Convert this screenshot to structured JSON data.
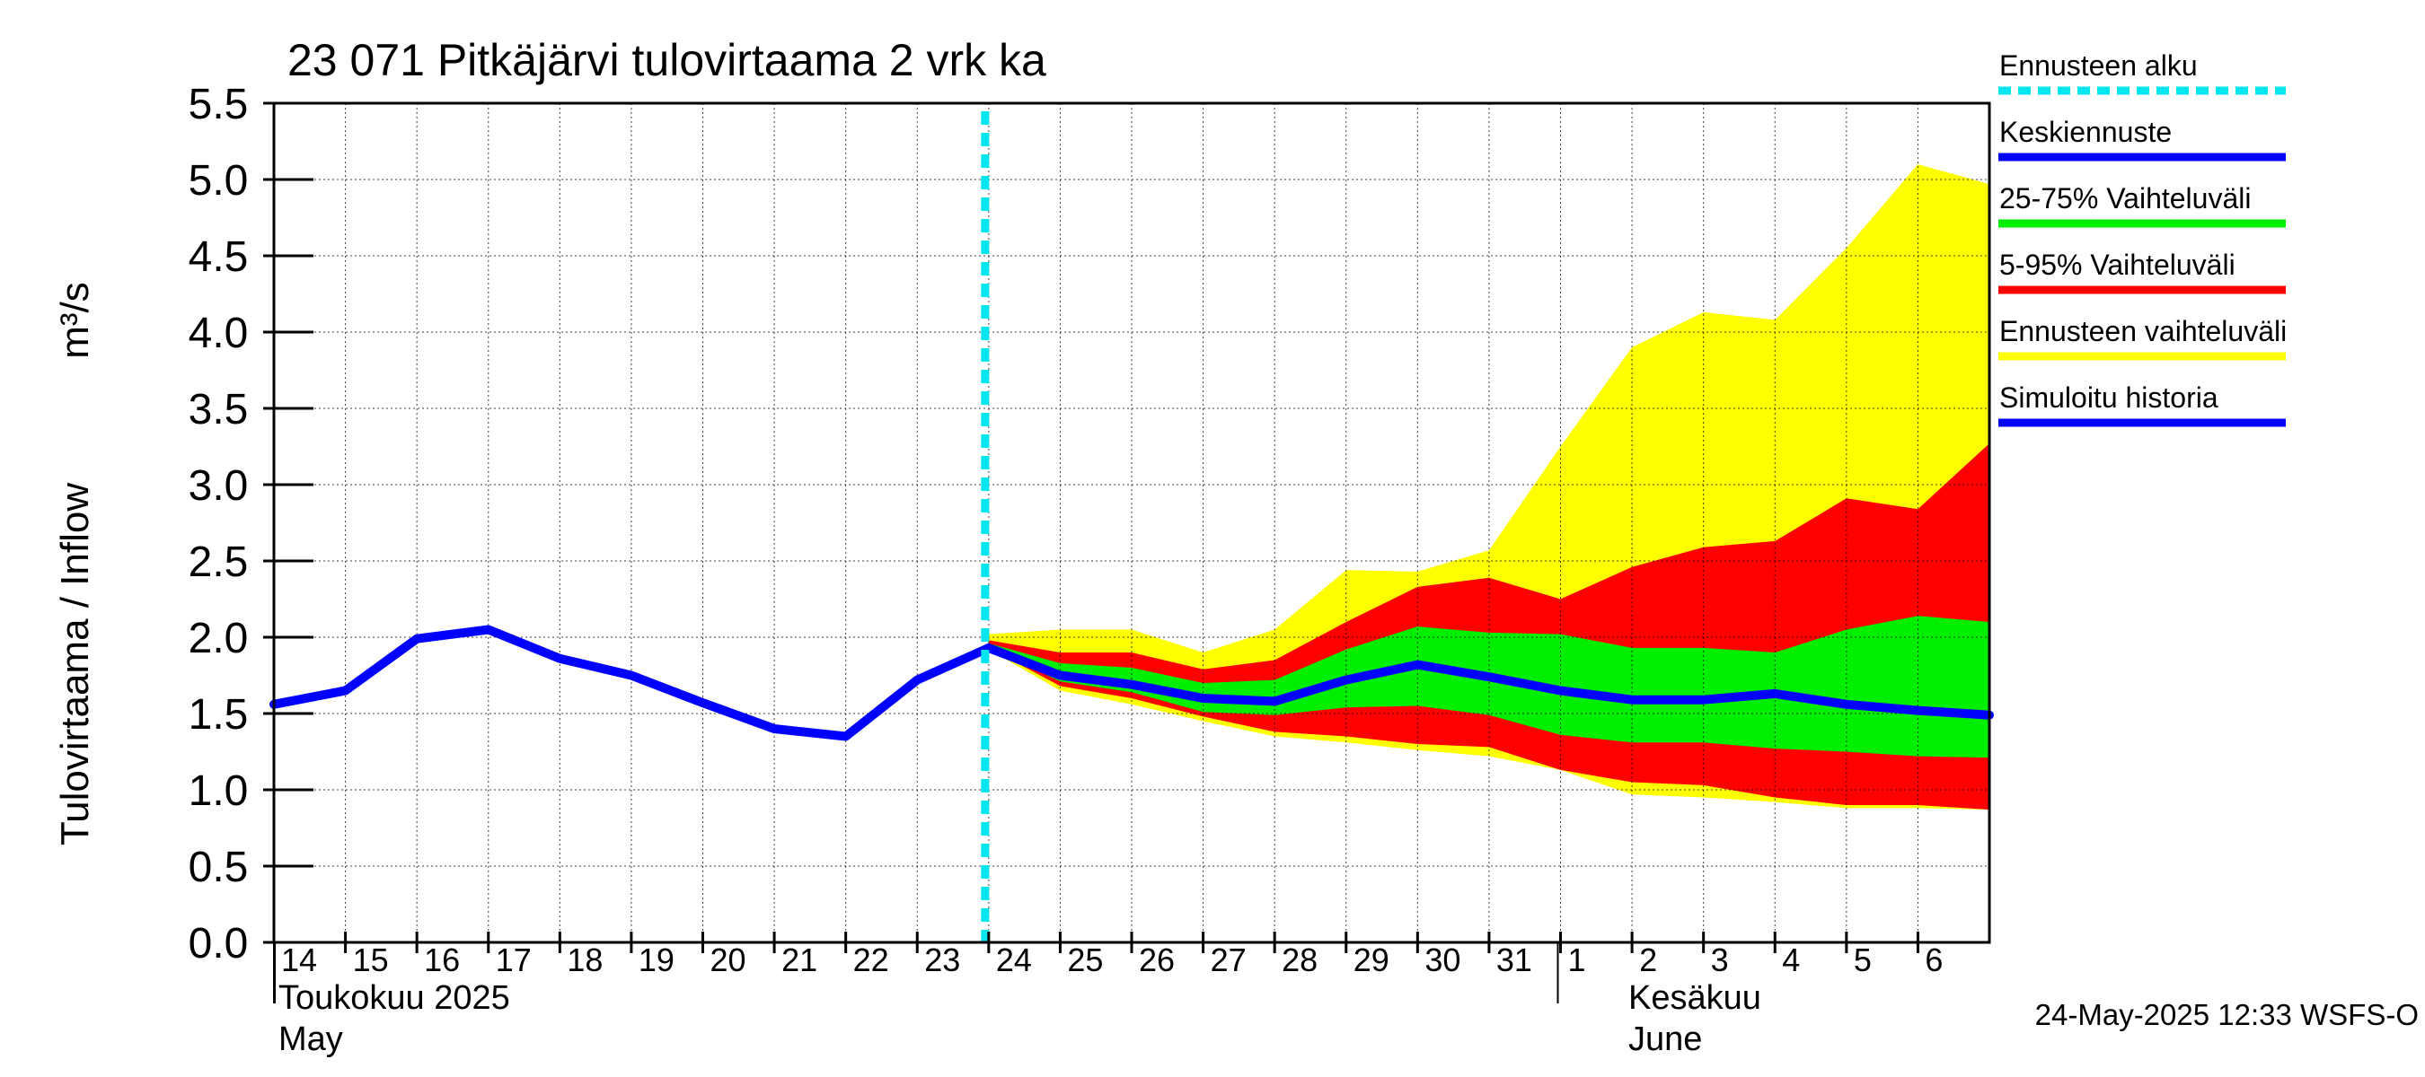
{
  "chart_data": {
    "type": "area",
    "title": "23 071 Pitkäjärvi tulovirtaama 2 vrk ka",
    "ylabel": "Tulovirtaama / Inflow",
    "yunit": "m³/s",
    "ylim": [
      0,
      5.5
    ],
    "yticks": [
      "0.0",
      "0.5",
      "1.0",
      "1.5",
      "2.0",
      "2.5",
      "3.0",
      "3.5",
      "4.0",
      "4.5",
      "5.0",
      "5.5"
    ],
    "grid": true,
    "legend_position": "right",
    "x_start": "2025-05-14",
    "x_end": "2025-06-06",
    "x_ticks": [
      "14",
      "15",
      "16",
      "17",
      "18",
      "19",
      "20",
      "21",
      "22",
      "23",
      "24",
      "25",
      "26",
      "27",
      "28",
      "29",
      "30",
      "31",
      "1",
      "2",
      "3",
      "4",
      "5",
      "6"
    ],
    "month_labels": {
      "may_fi": "Toukokuu  2025",
      "may_en": "May",
      "june_fi": "Kesäkuu",
      "june_en": "June"
    },
    "forecast_start": "2025-05-24",
    "x": [
      "2025-05-14",
      "2025-05-15",
      "2025-05-16",
      "2025-05-17",
      "2025-05-18",
      "2025-05-19",
      "2025-05-20",
      "2025-05-21",
      "2025-05-22",
      "2025-05-23",
      "2025-05-24",
      "2025-05-25",
      "2025-05-26",
      "2025-05-27",
      "2025-05-28",
      "2025-05-29",
      "2025-05-30",
      "2025-05-31",
      "2025-06-01",
      "2025-06-02",
      "2025-06-03",
      "2025-06-04",
      "2025-06-05",
      "2025-06-06",
      "2025-06-07"
    ],
    "series": [
      {
        "name": "Ennusteen vaihteluväli",
        "color": "#ffff00",
        "x": [
          "2025-05-24",
          "2025-05-25",
          "2025-05-26",
          "2025-05-27",
          "2025-05-28",
          "2025-05-29",
          "2025-05-30",
          "2025-05-31",
          "2025-06-01",
          "2025-06-02",
          "2025-06-03",
          "2025-06-04",
          "2025-06-05",
          "2025-06-06",
          "2025-06-07"
        ],
        "upper": [
          2.02,
          2.05,
          2.05,
          1.9,
          2.05,
          2.44,
          2.43,
          2.57,
          3.25,
          3.9,
          4.13,
          4.08,
          4.55,
          5.1,
          4.97
        ],
        "lower": [
          1.92,
          1.65,
          1.56,
          1.45,
          1.35,
          1.31,
          1.26,
          1.22,
          1.13,
          0.97,
          0.95,
          0.92,
          0.88,
          0.88,
          0.87
        ]
      },
      {
        "name": "5-95% Vaihteluväli",
        "color": "#ff0000",
        "x": [
          "2025-05-24",
          "2025-05-25",
          "2025-05-26",
          "2025-05-27",
          "2025-05-28",
          "2025-05-29",
          "2025-05-30",
          "2025-05-31",
          "2025-06-01",
          "2025-06-02",
          "2025-06-03",
          "2025-06-04",
          "2025-06-05",
          "2025-06-06",
          "2025-06-07"
        ],
        "upper": [
          1.98,
          1.9,
          1.9,
          1.79,
          1.85,
          2.1,
          2.33,
          2.39,
          2.25,
          2.46,
          2.59,
          2.63,
          2.91,
          2.84,
          3.27
        ],
        "lower": [
          1.93,
          1.68,
          1.6,
          1.48,
          1.38,
          1.35,
          1.3,
          1.28,
          1.13,
          1.05,
          1.03,
          0.95,
          0.9,
          0.9,
          0.87
        ]
      },
      {
        "name": "25-75% Vaihteluväli",
        "color": "#00ee00",
        "x": [
          "2025-05-24",
          "2025-05-25",
          "2025-05-26",
          "2025-05-27",
          "2025-05-28",
          "2025-05-29",
          "2025-05-30",
          "2025-05-31",
          "2025-06-01",
          "2025-06-02",
          "2025-06-03",
          "2025-06-04",
          "2025-06-05",
          "2025-06-06",
          "2025-06-07"
        ],
        "upper": [
          1.96,
          1.83,
          1.8,
          1.7,
          1.72,
          1.92,
          2.07,
          2.03,
          2.02,
          1.93,
          1.93,
          1.9,
          2.05,
          2.14,
          2.1
        ],
        "lower": [
          1.93,
          1.71,
          1.64,
          1.51,
          1.49,
          1.54,
          1.55,
          1.49,
          1.36,
          1.31,
          1.31,
          1.27,
          1.25,
          1.22,
          1.21
        ]
      },
      {
        "name": "Keskiennuste",
        "color": "#0000ff",
        "x": [
          "2025-05-24",
          "2025-05-25",
          "2025-05-26",
          "2025-05-27",
          "2025-05-28",
          "2025-05-29",
          "2025-05-30",
          "2025-05-31",
          "2025-06-01",
          "2025-06-02",
          "2025-06-03",
          "2025-06-04",
          "2025-06-05",
          "2025-06-06",
          "2025-06-07"
        ],
        "values": [
          1.93,
          1.75,
          1.69,
          1.6,
          1.58,
          1.72,
          1.82,
          1.74,
          1.65,
          1.59,
          1.59,
          1.63,
          1.56,
          1.52,
          1.49
        ]
      },
      {
        "name": "Simuloitu historia",
        "color": "#0000ff",
        "x": [
          "2025-05-14",
          "2025-05-15",
          "2025-05-16",
          "2025-05-17",
          "2025-05-18",
          "2025-05-19",
          "2025-05-20",
          "2025-05-21",
          "2025-05-22",
          "2025-05-23",
          "2025-05-24"
        ],
        "values": [
          1.56,
          1.65,
          1.99,
          2.05,
          1.86,
          1.75,
          1.57,
          1.4,
          1.35,
          1.72,
          1.93
        ]
      }
    ],
    "legend": [
      {
        "label": "Ennusteen alku",
        "color": "#00e5ee",
        "style": "dashed"
      },
      {
        "label": "Keskiennuste",
        "color": "#0000ff",
        "style": "solid"
      },
      {
        "label": "25-75% Vaihteluväli",
        "color": "#00ee00",
        "style": "solid"
      },
      {
        "label": "5-95% Vaihteluväli",
        "color": "#ff0000",
        "style": "solid"
      },
      {
        "label": "Ennusteen vaihteluväli",
        "color": "#ffff00",
        "style": "solid"
      },
      {
        "label": "Simuloitu historia",
        "color": "#0000ff",
        "style": "solid"
      }
    ],
    "timestamp": "24-May-2025 12:33 WSFS-O"
  }
}
